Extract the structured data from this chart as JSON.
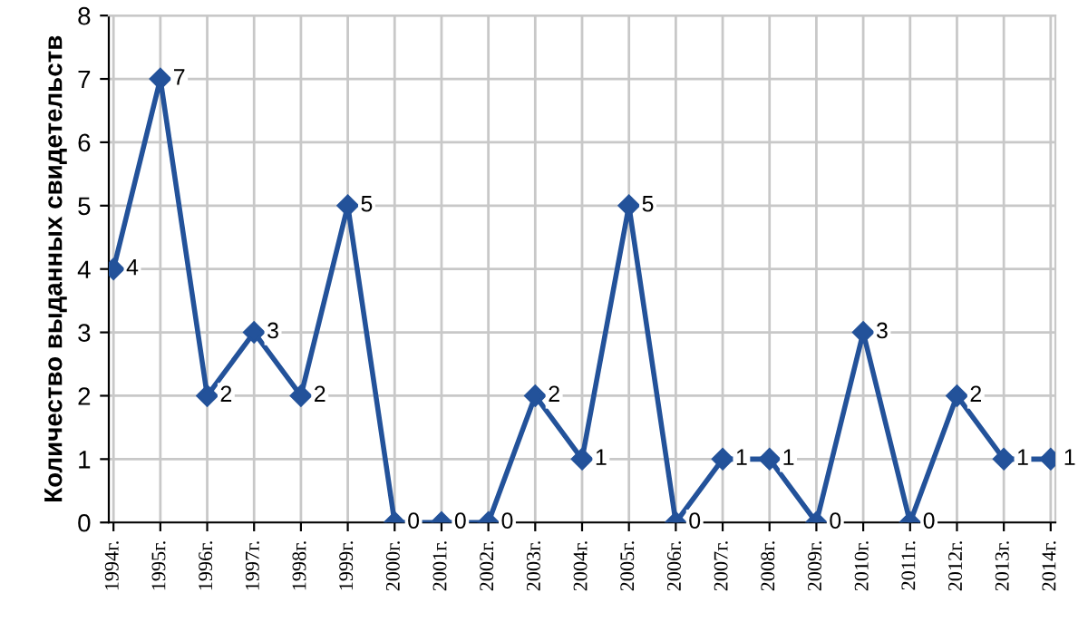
{
  "chart_data": {
    "type": "line",
    "ylabel": "Количество выданных свидетельств",
    "categories": [
      "1994г.",
      "1995г.",
      "1996г.",
      "1997г.",
      "1998г.",
      "1999г.",
      "2000г.",
      "2001г.",
      "2002г.",
      "2003г.",
      "2004г.",
      "2005г.",
      "2006г.",
      "2007г.",
      "2008г.",
      "2009г.",
      "2010г.",
      "2011г.",
      "2012г.",
      "2013г.",
      "2014г."
    ],
    "values": [
      4,
      7,
      2,
      3,
      2,
      5,
      0,
      0,
      0,
      2,
      1,
      5,
      0,
      1,
      1,
      0,
      3,
      0,
      2,
      1,
      1
    ],
    "color": "#23529a",
    "marker": "diamond",
    "line_style": "solid",
    "data_labels": true,
    "grid": true,
    "legend": false,
    "ylim": [
      0,
      8
    ],
    "yticks": [
      0,
      1,
      2,
      3,
      4,
      5,
      6,
      7,
      8
    ]
  }
}
